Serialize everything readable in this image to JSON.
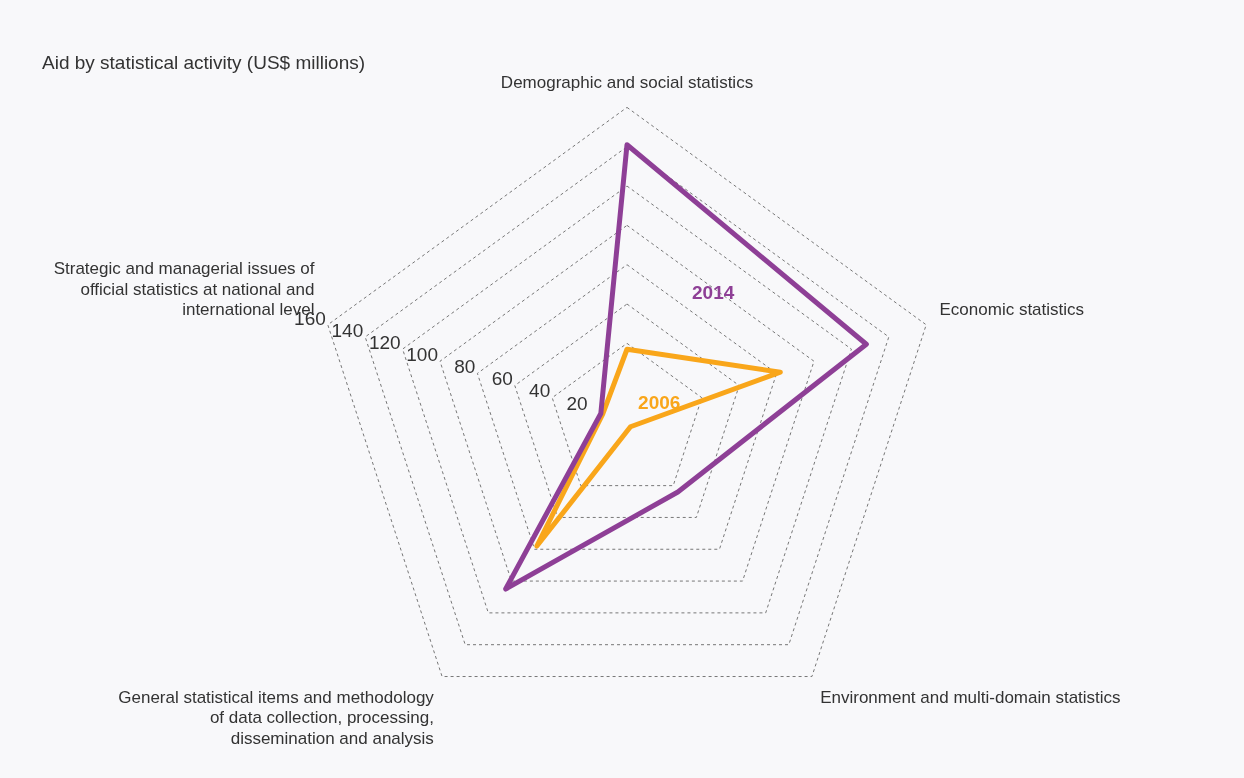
{
  "chart_data": {
    "type": "radar",
    "title": "Aid by statistical activity (US$ millions)",
    "categories": [
      "Demographic and social statistics",
      "Economic statistics",
      "Environment and multi-domain statistics",
      "General statistical items and methodology of data collection, processing, dissemination and analysis",
      "Strategic and managerial issues of official statistics at national and international level"
    ],
    "series": [
      {
        "name": "2014",
        "color": "#8e3f96",
        "values": [
          141,
          128,
          44,
          105,
          14
        ]
      },
      {
        "name": "2006",
        "color": "#f9a61a",
        "values": [
          37,
          82,
          3,
          78,
          13
        ]
      }
    ],
    "ylim": [
      0,
      160
    ],
    "yticks": [
      20,
      40,
      60,
      80,
      100,
      120,
      140,
      160
    ],
    "grid": true,
    "legend": false,
    "marker": "none",
    "line_style": "solid"
  }
}
